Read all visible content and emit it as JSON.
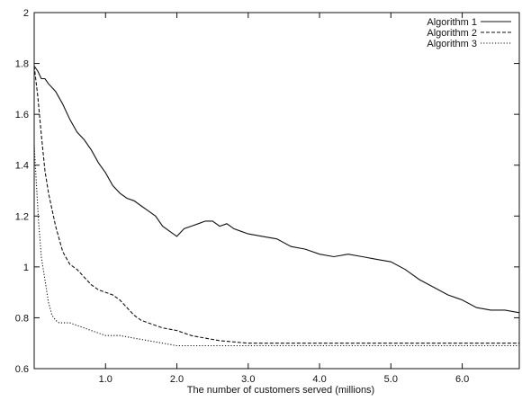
{
  "chart_data": {
    "type": "line",
    "title": "",
    "xlabel": "The number of customers served (millions)",
    "ylabel": "",
    "xlim": [
      0,
      6.8
    ],
    "ylim": [
      0.6,
      2.0
    ],
    "x_ticks": [
      1.0,
      2.0,
      3.0,
      4.0,
      5.0,
      6.0
    ],
    "x_tick_labels": [
      "1.0",
      "2.0",
      "3.0",
      "4.0",
      "5.0",
      "6.0"
    ],
    "y_ticks": [
      0.6,
      0.8,
      1.0,
      1.2,
      1.4,
      1.6,
      1.8,
      2.0
    ],
    "y_tick_labels": [
      "0.6",
      "0.8",
      "1",
      "1.2",
      "1.4",
      "1.6",
      "1.8",
      "2"
    ],
    "grid": false,
    "legend_position": "top-right",
    "series": [
      {
        "name": "Algorithm 1",
        "style": "solid",
        "x": [
          0.0,
          0.05,
          0.1,
          0.15,
          0.2,
          0.3,
          0.4,
          0.5,
          0.6,
          0.7,
          0.8,
          0.9,
          1.0,
          1.1,
          1.2,
          1.3,
          1.4,
          1.5,
          1.6,
          1.7,
          1.8,
          1.9,
          2.0,
          2.1,
          2.2,
          2.3,
          2.4,
          2.5,
          2.6,
          2.7,
          2.8,
          2.9,
          3.0,
          3.2,
          3.4,
          3.6,
          3.8,
          4.0,
          4.2,
          4.4,
          4.6,
          4.8,
          5.0,
          5.2,
          5.4,
          5.6,
          5.8,
          6.0,
          6.2,
          6.4,
          6.6,
          6.8
        ],
        "y": [
          1.79,
          1.77,
          1.74,
          1.74,
          1.72,
          1.69,
          1.64,
          1.58,
          1.53,
          1.5,
          1.46,
          1.41,
          1.37,
          1.32,
          1.29,
          1.27,
          1.26,
          1.24,
          1.22,
          1.2,
          1.16,
          1.14,
          1.12,
          1.15,
          1.16,
          1.17,
          1.18,
          1.18,
          1.16,
          1.17,
          1.15,
          1.14,
          1.13,
          1.12,
          1.11,
          1.08,
          1.07,
          1.05,
          1.04,
          1.05,
          1.04,
          1.03,
          1.02,
          0.99,
          0.95,
          0.92,
          0.89,
          0.87,
          0.84,
          0.83,
          0.83,
          0.82
        ]
      },
      {
        "name": "Algorithm 2",
        "style": "dashed",
        "x": [
          0.0,
          0.05,
          0.1,
          0.15,
          0.2,
          0.3,
          0.4,
          0.5,
          0.6,
          0.7,
          0.8,
          0.9,
          1.0,
          1.1,
          1.2,
          1.3,
          1.4,
          1.5,
          1.6,
          1.8,
          2.0,
          2.2,
          2.4,
          2.6,
          3.0,
          3.5,
          4.0,
          4.5,
          5.0,
          5.5,
          6.0,
          6.5,
          6.8
        ],
        "y": [
          1.79,
          1.67,
          1.52,
          1.38,
          1.29,
          1.16,
          1.06,
          1.01,
          0.99,
          0.96,
          0.93,
          0.91,
          0.9,
          0.89,
          0.87,
          0.84,
          0.81,
          0.79,
          0.78,
          0.76,
          0.75,
          0.73,
          0.72,
          0.71,
          0.7,
          0.7,
          0.7,
          0.7,
          0.7,
          0.7,
          0.7,
          0.7,
          0.7
        ]
      },
      {
        "name": "Algorithm 3",
        "style": "dotted",
        "x": [
          0.0,
          0.03,
          0.06,
          0.1,
          0.15,
          0.2,
          0.25,
          0.3,
          0.35,
          0.4,
          0.5,
          0.6,
          0.7,
          0.8,
          0.9,
          1.0,
          1.2,
          1.4,
          1.6,
          1.8,
          2.0,
          2.5,
          3.0,
          3.5,
          4.0,
          5.0,
          6.0,
          6.8
        ],
        "y": [
          1.48,
          1.33,
          1.18,
          1.04,
          0.95,
          0.86,
          0.81,
          0.79,
          0.78,
          0.78,
          0.78,
          0.77,
          0.76,
          0.75,
          0.74,
          0.73,
          0.73,
          0.72,
          0.71,
          0.7,
          0.69,
          0.69,
          0.69,
          0.69,
          0.69,
          0.69,
          0.69,
          0.69
        ]
      }
    ]
  }
}
